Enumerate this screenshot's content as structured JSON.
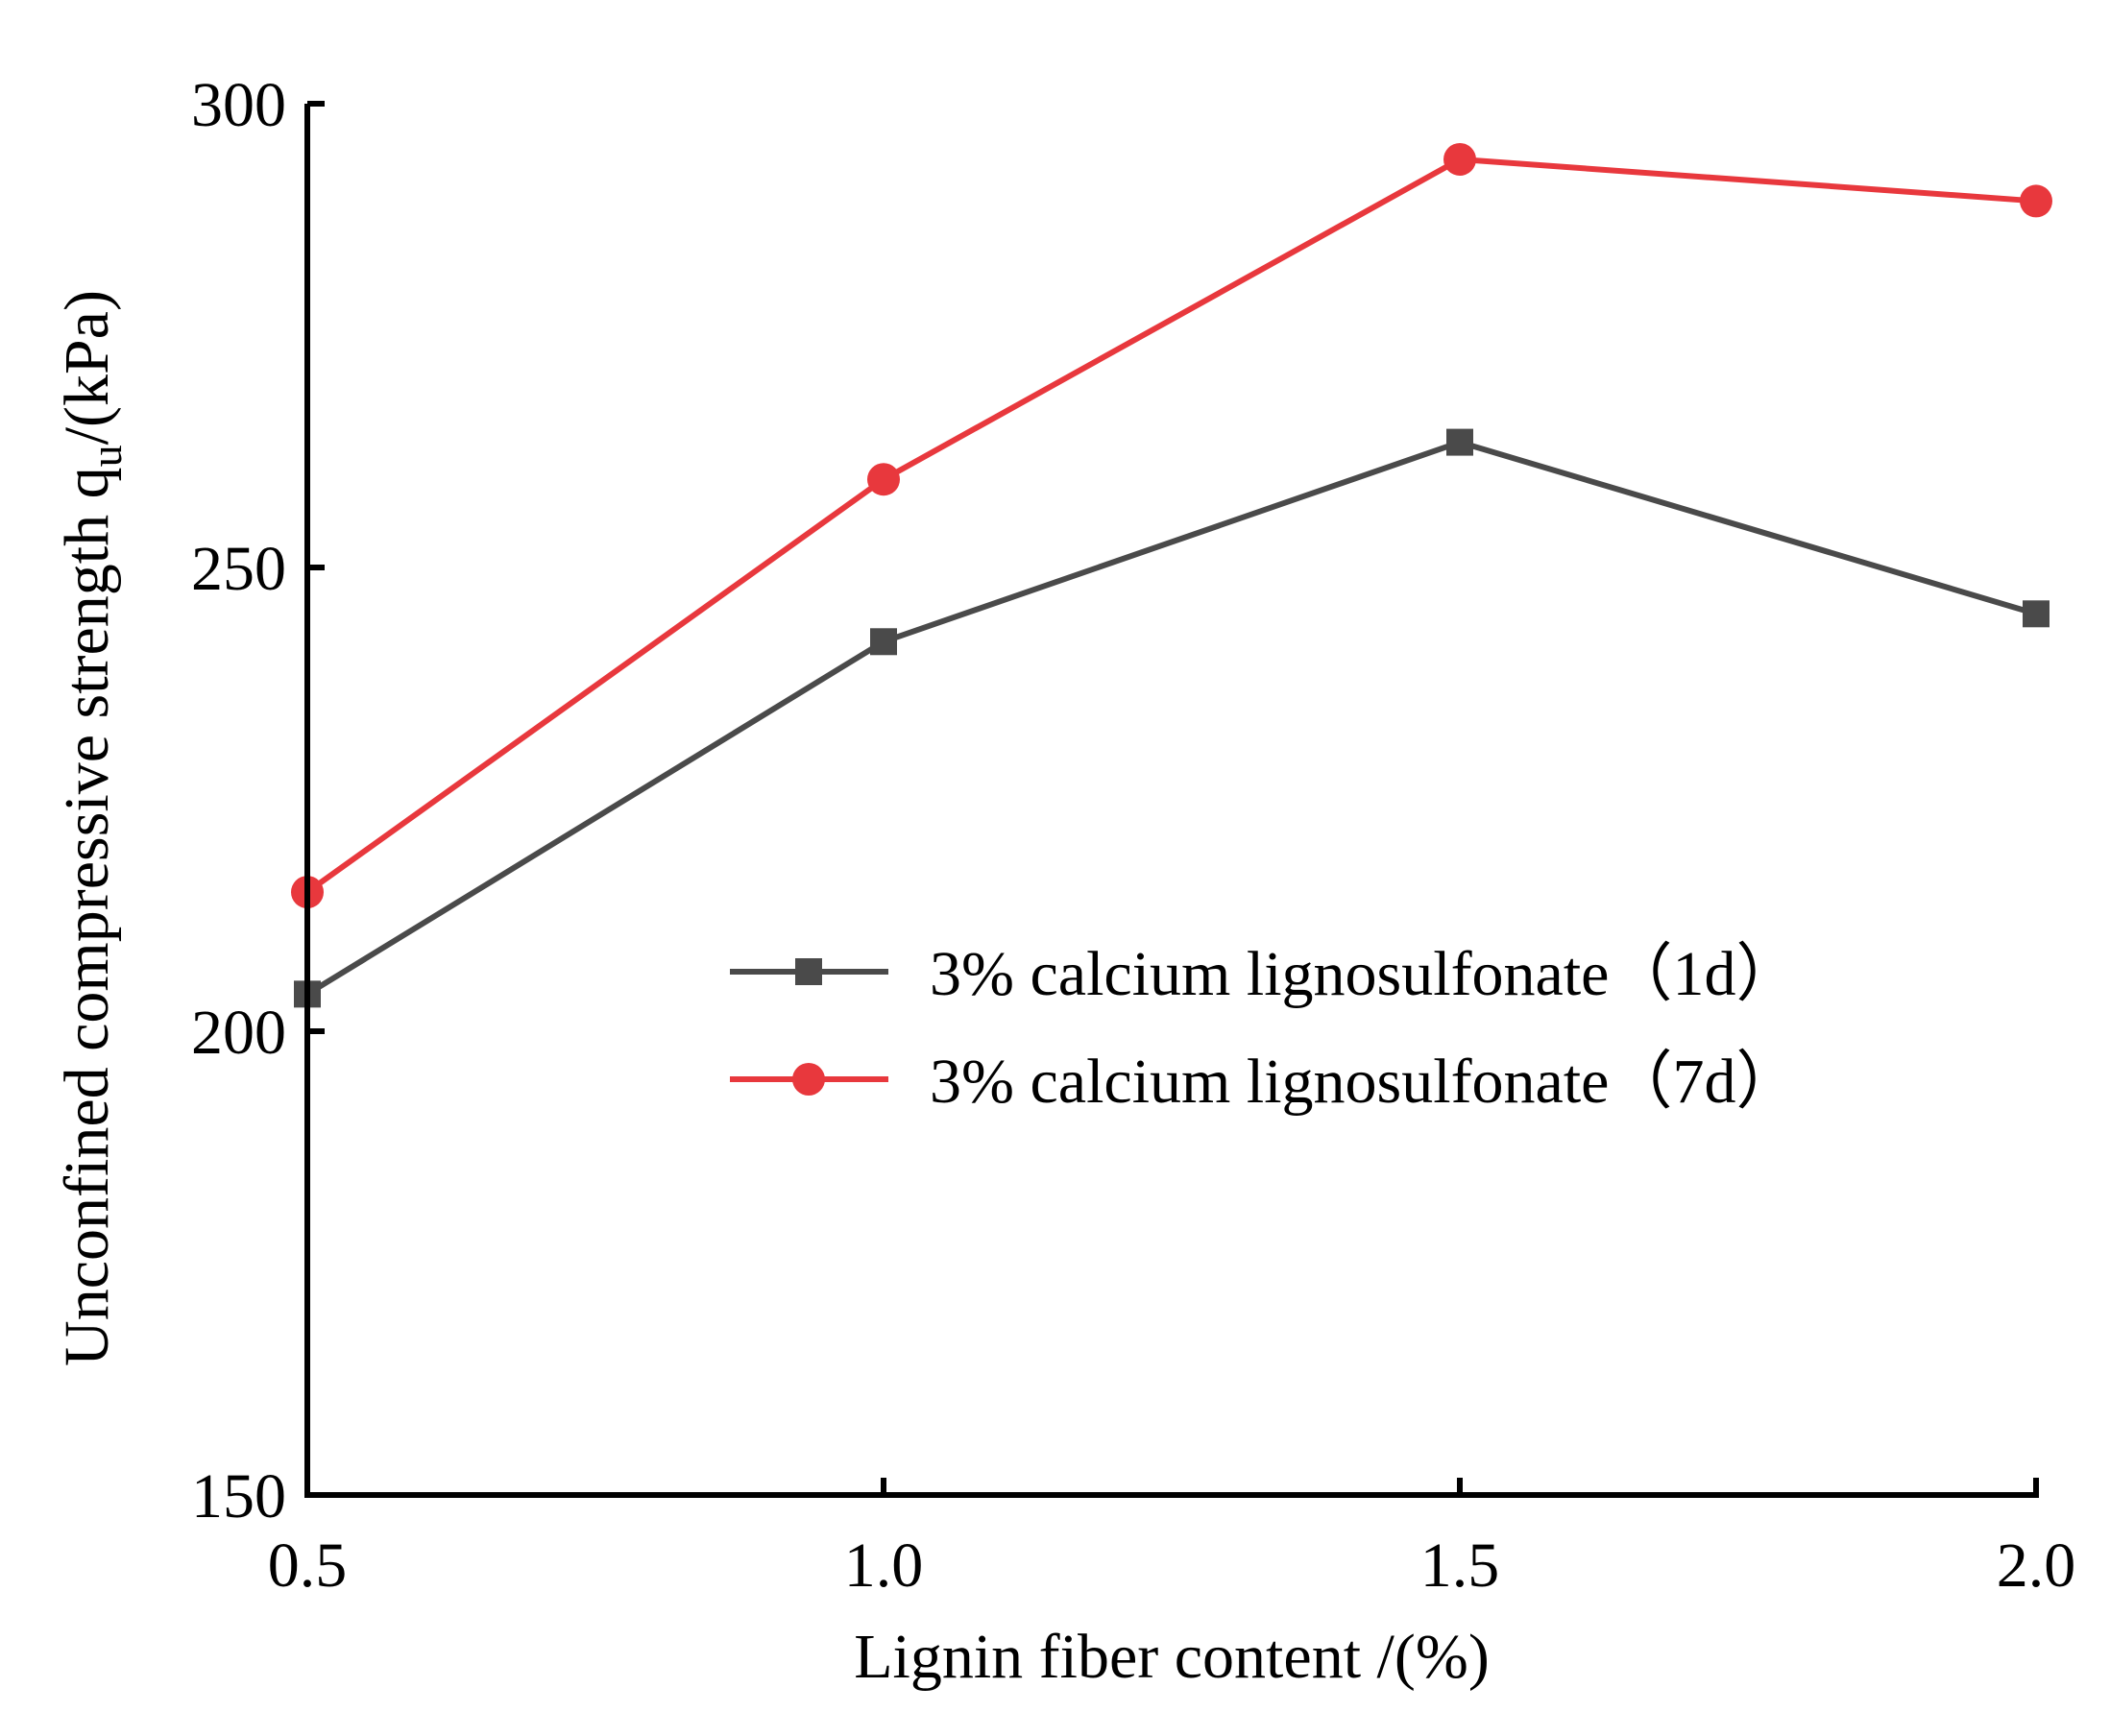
{
  "chart_data": {
    "type": "line",
    "x": [
      0.5,
      1.0,
      1.5,
      2.0
    ],
    "xlim": [
      0.5,
      2.0
    ],
    "ylim": [
      150,
      300
    ],
    "x_ticks": [
      0.5,
      1.0,
      1.5,
      2.0
    ],
    "y_ticks": [
      150,
      200,
      250,
      300
    ],
    "x_tick_labels": [
      "0.5",
      "1.0",
      "1.5",
      "2.0"
    ],
    "y_tick_labels": [
      "150",
      "200",
      "250",
      "300"
    ],
    "xlabel": "Lignin fiber content /(%)",
    "ylabel_main": "Unconfined compressive strength q",
    "ylabel_sub": "u",
    "ylabel_tail": "/(kPa)",
    "legend_position": "center-right",
    "grid": false,
    "series": [
      {
        "name": "3% calcium lignosulfonate（1d）",
        "marker": "square",
        "color": "#4a4a4a",
        "values": [
          204,
          242,
          263.5,
          245
        ]
      },
      {
        "name": "3% calcium lignosulfonate（7d）",
        "marker": "circle",
        "color": "#e8383d",
        "values": [
          215,
          259.5,
          294,
          289.5
        ]
      }
    ]
  }
}
